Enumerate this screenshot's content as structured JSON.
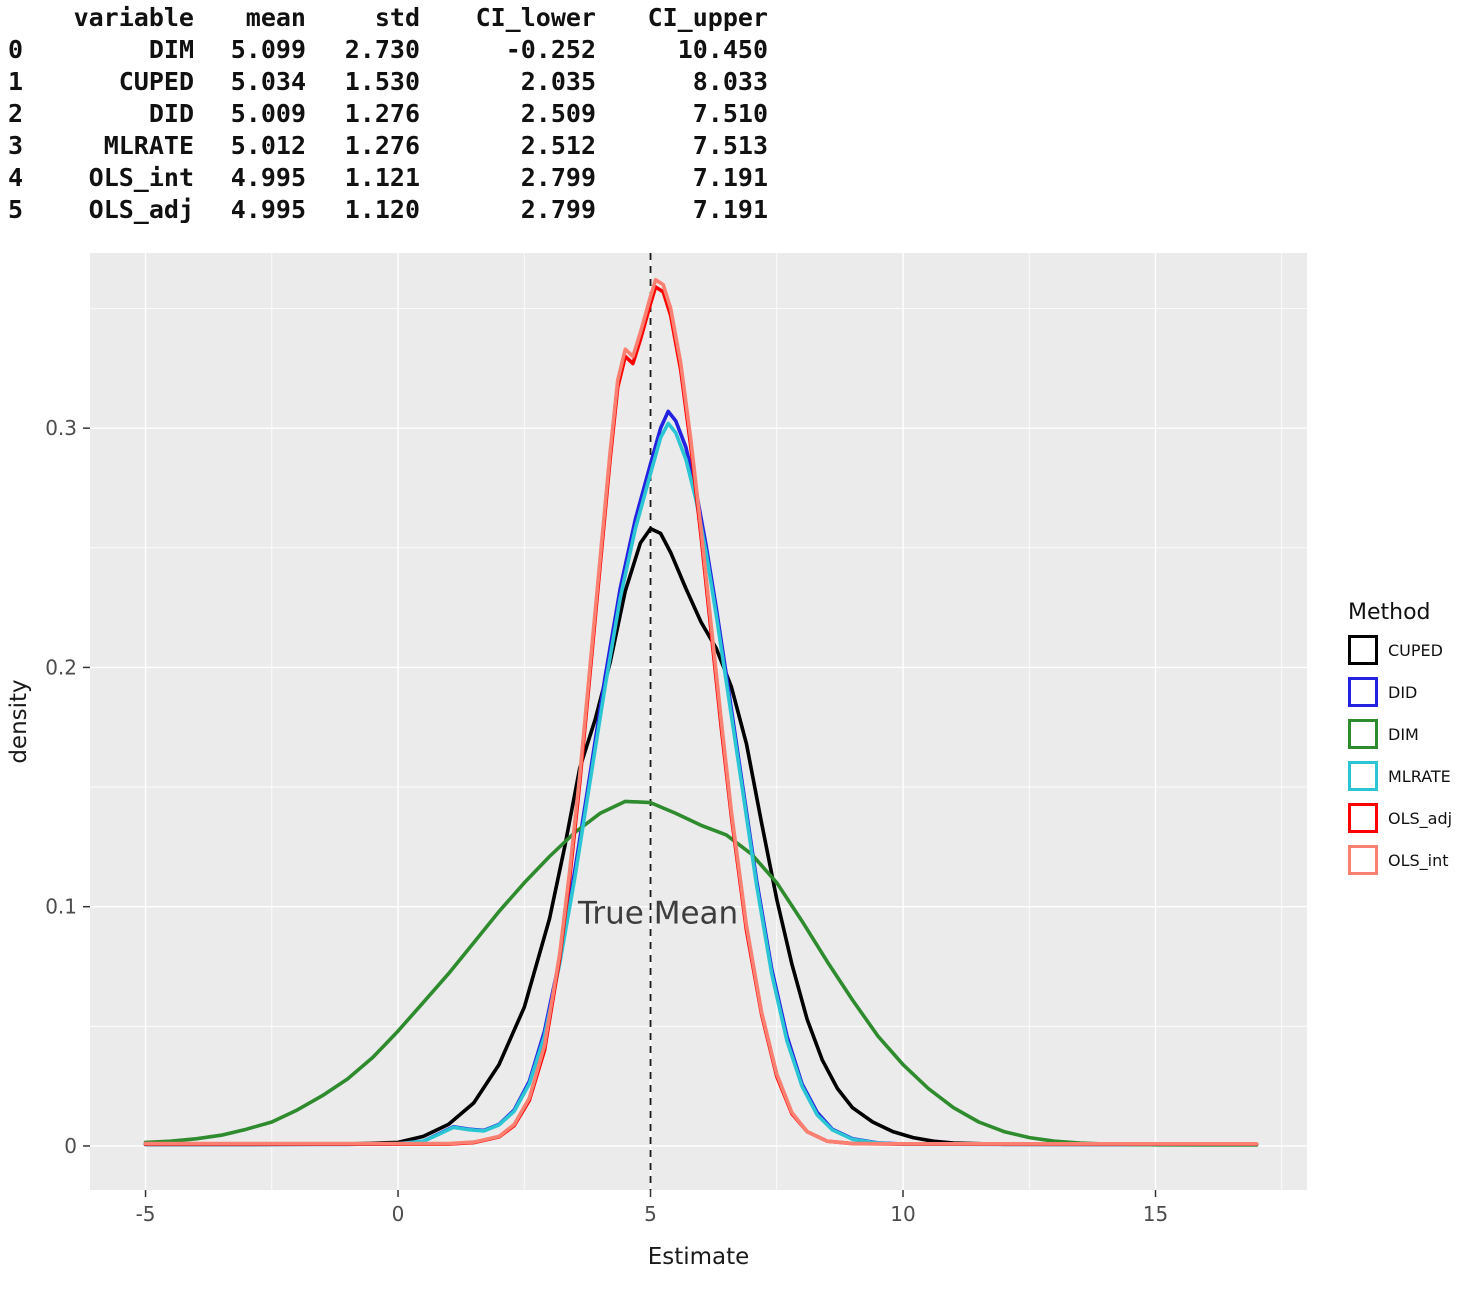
{
  "table": {
    "headers": [
      "",
      "variable",
      "mean",
      "std",
      "CI_lower",
      "CI_upper"
    ],
    "rows": [
      [
        "0",
        "DIM",
        "5.099",
        "2.730",
        "-0.252",
        "10.450"
      ],
      [
        "1",
        "CUPED",
        "5.034",
        "1.530",
        "2.035",
        "8.033"
      ],
      [
        "2",
        "DID",
        "5.009",
        "1.276",
        "2.509",
        "7.510"
      ],
      [
        "3",
        "MLRATE",
        "5.012",
        "1.276",
        "2.512",
        "7.513"
      ],
      [
        "4",
        "OLS_int",
        "4.995",
        "1.121",
        "2.799",
        "7.191"
      ],
      [
        "5",
        "OLS_adj",
        "4.995",
        "1.120",
        "2.799",
        "7.191"
      ]
    ]
  },
  "chart_data": {
    "type": "line",
    "subtype": "density",
    "title": "",
    "xlabel": "Estimate",
    "ylabel": "density",
    "xlim": [
      -6.1,
      18.0
    ],
    "ylim": [
      -0.0184,
      0.3732
    ],
    "xticks": [
      "-5",
      "0",
      "5",
      "10",
      "15"
    ],
    "xtick_values": [
      -5,
      0,
      5,
      10,
      15
    ],
    "yticks": [
      "0",
      "0.1",
      "0.2",
      "0.3"
    ],
    "ytick_values": [
      0,
      0.1,
      0.2,
      0.3
    ],
    "xminor": [
      -2.5,
      2.5,
      7.5,
      12.5,
      17.5
    ],
    "yminor": [
      0.05,
      0.15,
      0.25,
      0.35
    ],
    "grid": true,
    "panel_bg": "#ebebeb",
    "grid_color": "#ffffff",
    "tick_color": "#333333",
    "axis_text_color": "#4d4d4d",
    "vline": {
      "x": 5,
      "color": "#1a1a1a",
      "style": "dashed"
    },
    "annotation": {
      "text": "True Mean",
      "x": 5.15,
      "y": 0.093,
      "color": "#3d3d3d"
    },
    "legend": {
      "title": "Method",
      "position": "right",
      "entries": [
        {
          "label": "CUPED",
          "color": "#000000"
        },
        {
          "label": "DID",
          "color": "#2222e0"
        },
        {
          "label": "DIM",
          "color": "#2e8b2e"
        },
        {
          "label": "MLRATE",
          "color": "#2cc5d4"
        },
        {
          "label": "OLS_adj",
          "color": "#ff0000"
        },
        {
          "label": "OLS_int",
          "color": "#fa8072"
        }
      ]
    },
    "series": [
      {
        "name": "CUPED",
        "color": "#000000",
        "points": [
          [
            -5,
            0.0006
          ],
          [
            -3,
            0.0006
          ],
          [
            -1,
            0.0008
          ],
          [
            0,
            0.0015
          ],
          [
            0.5,
            0.004
          ],
          [
            1,
            0.009
          ],
          [
            1.5,
            0.018
          ],
          [
            2,
            0.034
          ],
          [
            2.5,
            0.058
          ],
          [
            3,
            0.095
          ],
          [
            3.3,
            0.125
          ],
          [
            3.6,
            0.158
          ],
          [
            3.9,
            0.178
          ],
          [
            4.2,
            0.202
          ],
          [
            4.5,
            0.232
          ],
          [
            4.8,
            0.252
          ],
          [
            5,
            0.258
          ],
          [
            5.2,
            0.256
          ],
          [
            5.4,
            0.248
          ],
          [
            5.7,
            0.233
          ],
          [
            6,
            0.219
          ],
          [
            6.3,
            0.208
          ],
          [
            6.6,
            0.192
          ],
          [
            6.9,
            0.168
          ],
          [
            7.2,
            0.135
          ],
          [
            7.5,
            0.103
          ],
          [
            7.8,
            0.076
          ],
          [
            8.1,
            0.053
          ],
          [
            8.4,
            0.036
          ],
          [
            8.7,
            0.024
          ],
          [
            9,
            0.016
          ],
          [
            9.4,
            0.01
          ],
          [
            9.8,
            0.006
          ],
          [
            10.2,
            0.0035
          ],
          [
            10.6,
            0.002
          ],
          [
            11,
            0.0012
          ],
          [
            12,
            0.0007
          ],
          [
            14,
            0.0006
          ],
          [
            17,
            0.0006
          ]
        ]
      },
      {
        "name": "DID",
        "color": "#2222e0",
        "points": [
          [
            -5,
            0.0007
          ],
          [
            -1,
            0.0007
          ],
          [
            0,
            0.0009
          ],
          [
            0.5,
            0.002
          ],
          [
            0.8,
            0.005
          ],
          [
            1.1,
            0.008
          ],
          [
            1.4,
            0.007
          ],
          [
            1.7,
            0.0065
          ],
          [
            2,
            0.009
          ],
          [
            2.3,
            0.015
          ],
          [
            2.6,
            0.027
          ],
          [
            2.9,
            0.048
          ],
          [
            3.2,
            0.078
          ],
          [
            3.5,
            0.115
          ],
          [
            3.8,
            0.155
          ],
          [
            4.1,
            0.196
          ],
          [
            4.4,
            0.233
          ],
          [
            4.7,
            0.262
          ],
          [
            5,
            0.285
          ],
          [
            5.2,
            0.3
          ],
          [
            5.35,
            0.307
          ],
          [
            5.5,
            0.303
          ],
          [
            5.7,
            0.292
          ],
          [
            5.9,
            0.274
          ],
          [
            6.1,
            0.251
          ],
          [
            6.3,
            0.225
          ],
          [
            6.5,
            0.197
          ],
          [
            6.8,
            0.154
          ],
          [
            7.1,
            0.111
          ],
          [
            7.4,
            0.074
          ],
          [
            7.7,
            0.046
          ],
          [
            8,
            0.026
          ],
          [
            8.3,
            0.014
          ],
          [
            8.6,
            0.007
          ],
          [
            9,
            0.003
          ],
          [
            9.5,
            0.0013
          ],
          [
            10,
            0.0008
          ],
          [
            12,
            0.0007
          ],
          [
            17,
            0.0007
          ]
        ]
      },
      {
        "name": "DIM",
        "color": "#2e8b2e",
        "points": [
          [
            -5,
            0.0015
          ],
          [
            -4.5,
            0.002
          ],
          [
            -4,
            0.003
          ],
          [
            -3.5,
            0.0045
          ],
          [
            -3,
            0.007
          ],
          [
            -2.5,
            0.01
          ],
          [
            -2,
            0.015
          ],
          [
            -1.5,
            0.021
          ],
          [
            -1,
            0.028
          ],
          [
            -0.5,
            0.037
          ],
          [
            0,
            0.048
          ],
          [
            0.5,
            0.06
          ],
          [
            1,
            0.072
          ],
          [
            1.5,
            0.085
          ],
          [
            2,
            0.098
          ],
          [
            2.5,
            0.11
          ],
          [
            3,
            0.121
          ],
          [
            3.5,
            0.131
          ],
          [
            4,
            0.139
          ],
          [
            4.5,
            0.144
          ],
          [
            5,
            0.1435
          ],
          [
            5.5,
            0.139
          ],
          [
            6,
            0.134
          ],
          [
            6.5,
            0.13
          ],
          [
            7,
            0.122
          ],
          [
            7.5,
            0.11
          ],
          [
            8,
            0.094
          ],
          [
            8.5,
            0.077
          ],
          [
            9,
            0.061
          ],
          [
            9.5,
            0.046
          ],
          [
            10,
            0.034
          ],
          [
            10.5,
            0.024
          ],
          [
            11,
            0.016
          ],
          [
            11.5,
            0.01
          ],
          [
            12,
            0.006
          ],
          [
            12.5,
            0.0035
          ],
          [
            13,
            0.002
          ],
          [
            13.5,
            0.0012
          ],
          [
            14,
            0.0008
          ],
          [
            15,
            0.0005
          ],
          [
            16,
            0.0004
          ],
          [
            17,
            0.0004
          ]
        ]
      },
      {
        "name": "MLRATE",
        "color": "#2cc5d4",
        "points": [
          [
            -5,
            0.0007
          ],
          [
            -1,
            0.0007
          ],
          [
            0,
            0.0009
          ],
          [
            0.5,
            0.002
          ],
          [
            0.8,
            0.0048
          ],
          [
            1.1,
            0.0078
          ],
          [
            1.4,
            0.0068
          ],
          [
            1.7,
            0.0063
          ],
          [
            2,
            0.0088
          ],
          [
            2.3,
            0.0145
          ],
          [
            2.6,
            0.026
          ],
          [
            2.9,
            0.046
          ],
          [
            3.2,
            0.076
          ],
          [
            3.5,
            0.112
          ],
          [
            3.8,
            0.152
          ],
          [
            4.1,
            0.192
          ],
          [
            4.4,
            0.229
          ],
          [
            4.7,
            0.258
          ],
          [
            5,
            0.281
          ],
          [
            5.2,
            0.296
          ],
          [
            5.35,
            0.302
          ],
          [
            5.5,
            0.298
          ],
          [
            5.7,
            0.287
          ],
          [
            5.9,
            0.27
          ],
          [
            6.1,
            0.248
          ],
          [
            6.3,
            0.222
          ],
          [
            6.5,
            0.194
          ],
          [
            6.8,
            0.152
          ],
          [
            7.1,
            0.109
          ],
          [
            7.4,
            0.072
          ],
          [
            7.7,
            0.044
          ],
          [
            8,
            0.025
          ],
          [
            8.3,
            0.013
          ],
          [
            8.6,
            0.0067
          ],
          [
            9,
            0.0028
          ],
          [
            9.5,
            0.0012
          ],
          [
            10,
            0.0007
          ],
          [
            17,
            0.0007
          ]
        ]
      },
      {
        "name": "OLS_adj",
        "color": "#ff0000",
        "points": [
          [
            -5,
            0.0008
          ],
          [
            1,
            0.0008
          ],
          [
            1.5,
            0.0014
          ],
          [
            2,
            0.0038
          ],
          [
            2.3,
            0.0085
          ],
          [
            2.6,
            0.019
          ],
          [
            2.9,
            0.04
          ],
          [
            3.2,
            0.078
          ],
          [
            3.4,
            0.112
          ],
          [
            3.6,
            0.152
          ],
          [
            3.8,
            0.197
          ],
          [
            4,
            0.242
          ],
          [
            4.2,
            0.287
          ],
          [
            4.35,
            0.317
          ],
          [
            4.5,
            0.33
          ],
          [
            4.65,
            0.327
          ],
          [
            4.8,
            0.337
          ],
          [
            5,
            0.352
          ],
          [
            5.1,
            0.359
          ],
          [
            5.25,
            0.357
          ],
          [
            5.4,
            0.347
          ],
          [
            5.6,
            0.324
          ],
          [
            5.8,
            0.292
          ],
          [
            6,
            0.255
          ],
          [
            6.2,
            0.215
          ],
          [
            6.4,
            0.175
          ],
          [
            6.6,
            0.138
          ],
          [
            6.9,
            0.09
          ],
          [
            7.2,
            0.055
          ],
          [
            7.5,
            0.029
          ],
          [
            7.8,
            0.0135
          ],
          [
            8.1,
            0.006
          ],
          [
            8.5,
            0.002
          ],
          [
            9,
            0.001
          ],
          [
            10,
            0.0008
          ],
          [
            17,
            0.0008
          ]
        ]
      },
      {
        "name": "OLS_int",
        "color": "#fa8072",
        "points": [
          [
            -5,
            0.001
          ],
          [
            1,
            0.001
          ],
          [
            1.5,
            0.0016
          ],
          [
            2,
            0.004
          ],
          [
            2.3,
            0.009
          ],
          [
            2.6,
            0.02
          ],
          [
            2.9,
            0.042
          ],
          [
            3.2,
            0.08
          ],
          [
            3.4,
            0.115
          ],
          [
            3.6,
            0.155
          ],
          [
            3.8,
            0.2
          ],
          [
            4,
            0.245
          ],
          [
            4.2,
            0.29
          ],
          [
            4.35,
            0.32
          ],
          [
            4.5,
            0.333
          ],
          [
            4.65,
            0.33
          ],
          [
            4.8,
            0.34
          ],
          [
            5,
            0.355
          ],
          [
            5.1,
            0.362
          ],
          [
            5.25,
            0.36
          ],
          [
            5.4,
            0.35
          ],
          [
            5.6,
            0.327
          ],
          [
            5.8,
            0.295
          ],
          [
            6,
            0.258
          ],
          [
            6.2,
            0.218
          ],
          [
            6.4,
            0.178
          ],
          [
            6.6,
            0.14
          ],
          [
            6.9,
            0.092
          ],
          [
            7.2,
            0.056
          ],
          [
            7.5,
            0.03
          ],
          [
            7.8,
            0.014
          ],
          [
            8.1,
            0.006
          ],
          [
            8.5,
            0.002
          ],
          [
            9,
            0.001
          ],
          [
            10,
            0.0009
          ],
          [
            17,
            0.0009
          ]
        ]
      }
    ]
  }
}
